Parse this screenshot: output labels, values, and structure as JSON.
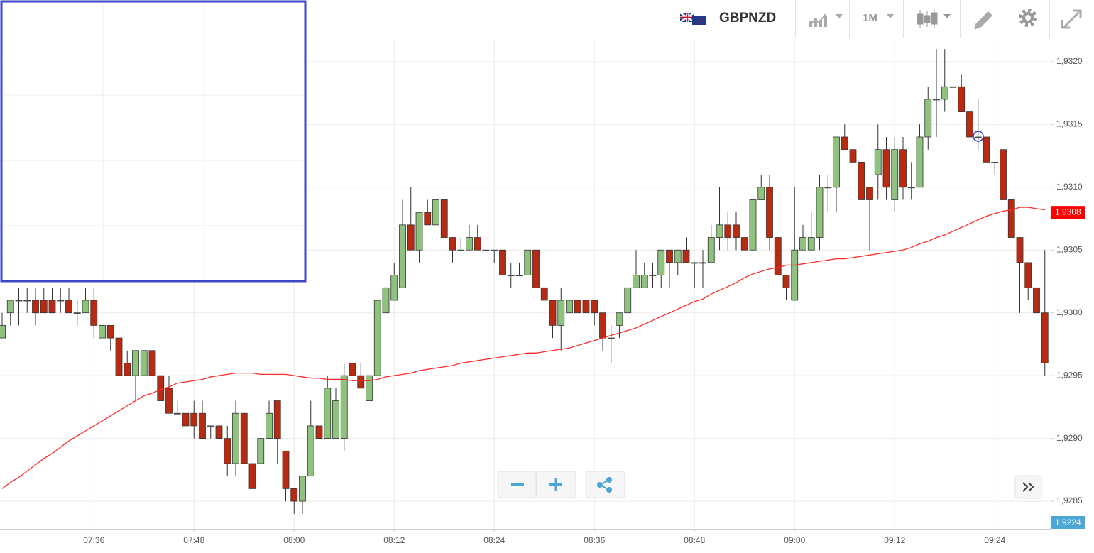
{
  "chart_data": {
    "type": "candlestick",
    "symbol": "GBPNZD",
    "interval": "1M",
    "categories": [
      null,
      null,
      null,
      null,
      null,
      null,
      null,
      null,
      null,
      null,
      null,
      "07:36",
      null,
      null,
      null,
      null,
      null,
      null,
      null,
      null,
      null,
      null,
      null,
      "07:48",
      null,
      null,
      null,
      null,
      null,
      null,
      null,
      null,
      null,
      null,
      null,
      "08:00",
      null,
      null,
      null,
      null,
      null,
      null,
      null,
      null,
      null,
      null,
      null,
      "08:12",
      null,
      null,
      null,
      null,
      null,
      null,
      null,
      null,
      null,
      null,
      null,
      "08:24",
      null,
      null,
      null,
      null,
      null,
      null,
      null,
      null,
      null,
      null,
      null,
      "08:36",
      null,
      null,
      null,
      null,
      null,
      null,
      null,
      null,
      null,
      null,
      null,
      "08:48",
      null,
      null,
      null,
      null,
      null,
      null,
      null,
      null,
      null,
      null,
      null,
      "09:00",
      null,
      null,
      null,
      null,
      null,
      null,
      null,
      null,
      null,
      null,
      null,
      "09:12",
      null,
      null,
      null,
      null,
      null,
      null,
      null,
      null,
      null,
      null,
      null,
      "09:24",
      null,
      null,
      null,
      null,
      null,
      null
    ],
    "open": [
      1.9298,
      1.93,
      1.9301,
      1.9301,
      1.9301,
      1.9301,
      1.9301,
      1.9301,
      1.9301,
      1.93,
      1.93,
      1.9301,
      1.9298,
      1.9299,
      1.9298,
      1.9296,
      1.9295,
      1.9295,
      1.9297,
      1.9295,
      1.9294,
      1.9292,
      1.9292,
      1.9292,
      1.9292,
      1.9291,
      1.9291,
      1.929,
      1.9288,
      1.9292,
      1.9288,
      1.9288,
      1.929,
      1.9293,
      1.9289,
      1.9286,
      1.9285,
      1.9287,
      1.9291,
      1.929,
      1.929,
      1.929,
      1.9296,
      1.9295,
      1.9293,
      1.9295,
      1.93,
      1.9301,
      1.9302,
      1.9307,
      1.9305,
      1.9308,
      1.9307,
      1.9309,
      1.9306,
      1.9305,
      1.9305,
      1.9306,
      1.9305,
      1.9305,
      1.9305,
      1.9303,
      1.9303,
      1.9303,
      1.9305,
      1.9302,
      1.9301,
      1.9299,
      1.93,
      1.9301,
      1.9301,
      1.9301,
      1.93,
      1.9298,
      1.9299,
      1.93,
      1.9302,
      1.9302,
      1.9303,
      1.9303,
      1.9305,
      1.9304,
      1.9305,
      1.9304,
      1.9304,
      1.9304,
      1.9306,
      1.9307,
      1.9307,
      1.9306,
      1.9305,
      1.9309,
      1.931,
      1.9306,
      1.9303,
      1.9301,
      1.9305,
      1.9305,
      1.9306,
      1.931,
      1.931,
      1.9314,
      1.9313,
      1.9312,
      1.931,
      1.9311,
      1.9313,
      1.9309,
      1.9313,
      1.931,
      1.931,
      1.9314,
      1.9317,
      1.9317,
      1.9318,
      1.9318,
      1.9316,
      1.9314,
      1.9314,
      1.9312,
      1.9313,
      1.9309,
      1.9306,
      1.9304,
      1.9302,
      1.93
    ],
    "high": [
      1.93,
      1.9301,
      1.9302,
      1.9302,
      1.9302,
      1.9302,
      1.9302,
      1.9302,
      1.9302,
      1.9301,
      1.9302,
      1.9302,
      1.9299,
      1.9299,
      1.9298,
      1.9297,
      1.9297,
      1.9297,
      1.9297,
      1.9295,
      1.9295,
      1.9293,
      1.9292,
      1.9293,
      1.9293,
      1.9291,
      1.9291,
      1.9291,
      1.9293,
      1.9292,
      1.9288,
      1.929,
      1.9293,
      1.9293,
      1.9289,
      1.9286,
      1.9287,
      1.9293,
      1.9296,
      1.9295,
      1.9294,
      1.9296,
      1.9296,
      1.9296,
      1.9295,
      1.9301,
      1.9302,
      1.9304,
      1.9309,
      1.931,
      1.9308,
      1.9309,
      1.9309,
      1.9309,
      1.9306,
      1.9306,
      1.9307,
      1.9307,
      1.9307,
      1.9305,
      1.9305,
      1.9304,
      1.9304,
      1.9305,
      1.9305,
      1.9302,
      1.9301,
      1.9302,
      1.9301,
      1.9301,
      1.9301,
      1.9301,
      1.93,
      1.9299,
      1.93,
      1.9302,
      1.9305,
      1.9304,
      1.9304,
      1.9305,
      1.9305,
      1.9305,
      1.9306,
      1.9304,
      1.9305,
      1.9307,
      1.931,
      1.9308,
      1.9308,
      1.9306,
      1.931,
      1.9311,
      1.9311,
      1.9306,
      1.9303,
      1.931,
      1.9307,
      1.9308,
      1.9311,
      1.9311,
      1.9314,
      1.9315,
      1.9317,
      1.9312,
      1.931,
      1.9315,
      1.9314,
      1.9314,
      1.9314,
      1.9312,
      1.9315,
      1.9318,
      1.9321,
      1.9321,
      1.9319,
      1.9319,
      1.9316,
      1.9317,
      1.9314,
      1.9312,
      1.9313,
      1.9309,
      1.9306,
      1.9304,
      1.9302,
      1.9305
    ],
    "low": [
      1.9298,
      1.9299,
      1.9299,
      1.93,
      1.9299,
      1.93,
      1.93,
      1.93,
      1.93,
      1.9299,
      1.93,
      1.9298,
      1.9298,
      1.9297,
      1.9295,
      1.9295,
      1.9293,
      1.9295,
      1.9295,
      1.9293,
      1.9292,
      1.9292,
      1.9291,
      1.929,
      1.929,
      1.929,
      1.929,
      1.9287,
      1.9287,
      1.9288,
      1.9286,
      1.9288,
      1.929,
      1.9288,
      1.9285,
      1.9284,
      1.9284,
      1.9287,
      1.929,
      1.929,
      1.929,
      1.9289,
      1.9295,
      1.9294,
      1.9293,
      1.9295,
      1.93,
      1.9301,
      1.9302,
      1.9305,
      1.9304,
      1.9307,
      1.9307,
      1.9306,
      1.9304,
      1.9305,
      1.9305,
      1.9305,
      1.9304,
      1.9304,
      1.9303,
      1.9302,
      1.9303,
      1.9303,
      1.9302,
      1.9301,
      1.9298,
      1.9297,
      1.93,
      1.93,
      1.93,
      1.9299,
      1.9297,
      1.9296,
      1.9298,
      1.93,
      1.9302,
      1.9302,
      1.9302,
      1.9302,
      1.9302,
      1.9303,
      1.9304,
      1.9302,
      1.9302,
      1.9304,
      1.9305,
      1.9305,
      1.9305,
      1.9305,
      1.9305,
      1.9309,
      1.9305,
      1.9303,
      1.9301,
      1.9301,
      1.9305,
      1.9305,
      1.9305,
      1.9308,
      1.9308,
      1.9313,
      1.9311,
      1.9309,
      1.9305,
      1.9309,
      1.9309,
      1.9308,
      1.9309,
      1.9309,
      1.931,
      1.9313,
      1.9314,
      1.9316,
      1.9317,
      1.9316,
      1.9314,
      1.9313,
      1.9312,
      1.9311,
      1.9309,
      1.9306,
      1.93,
      1.9301,
      1.93,
      1.9295
    ],
    "close": [
      1.9299,
      1.9301,
      1.9301,
      1.9301,
      1.93,
      1.93,
      1.93,
      1.9301,
      1.93,
      1.93,
      1.9301,
      1.9299,
      1.9299,
      1.9298,
      1.9295,
      1.9295,
      1.9297,
      1.9297,
      1.9295,
      1.9293,
      1.9292,
      1.9292,
      1.9291,
      1.9291,
      1.929,
      1.9291,
      1.929,
      1.9288,
      1.9292,
      1.9288,
      1.9286,
      1.929,
      1.9292,
      1.929,
      1.9286,
      1.9285,
      1.9287,
      1.9291,
      1.929,
      1.9294,
      1.9293,
      1.9295,
      1.9295,
      1.9294,
      1.9295,
      1.9301,
      1.9302,
      1.9303,
      1.9307,
      1.9305,
      1.9308,
      1.9307,
      1.9309,
      1.9306,
      1.9305,
      1.9305,
      1.9306,
      1.9305,
      1.9305,
      1.9305,
      1.9303,
      1.9303,
      1.9303,
      1.9305,
      1.9302,
      1.9301,
      1.9299,
      1.9301,
      1.9301,
      1.93,
      1.93,
      1.93,
      1.9298,
      1.9298,
      1.93,
      1.9302,
      1.9303,
      1.9303,
      1.9303,
      1.9305,
      1.9304,
      1.9305,
      1.9304,
      1.9304,
      1.9304,
      1.9306,
      1.9307,
      1.9306,
      1.9306,
      1.9305,
      1.9309,
      1.931,
      1.9306,
      1.9303,
      1.9302,
      1.9305,
      1.9306,
      1.9306,
      1.931,
      1.931,
      1.9314,
      1.9313,
      1.9312,
      1.9309,
      1.9309,
      1.9313,
      1.931,
      1.9313,
      1.931,
      1.931,
      1.9314,
      1.9317,
      1.9317,
      1.9318,
      1.9318,
      1.9316,
      1.9314,
      1.9314,
      1.9312,
      1.9312,
      1.9309,
      1.9306,
      1.9304,
      1.9302,
      1.93,
      1.9296
    ],
    "up_color": "#8fc27c",
    "down_color": "#b92a12",
    "moving_average": {
      "color": "#ff2b2b",
      "values": [
        1.9286,
        1.92865,
        1.92869,
        1.92874,
        1.92879,
        1.92884,
        1.92888,
        1.92893,
        1.92898,
        1.92902,
        1.92906,
        1.9291,
        1.92914,
        1.92918,
        1.92922,
        1.92926,
        1.9293,
        1.92934,
        1.92936,
        1.92939,
        1.92941,
        1.92944,
        1.92945,
        1.92946,
        1.92947,
        1.92949,
        1.9295,
        1.92951,
        1.92952,
        1.92952,
        1.92952,
        1.92951,
        1.92951,
        1.92951,
        1.92951,
        1.9295,
        1.92949,
        1.92948,
        1.92948,
        1.92947,
        1.92947,
        1.92947,
        1.92946,
        1.92946,
        1.92946,
        1.92947,
        1.92949,
        1.9295,
        1.92951,
        1.92952,
        1.92954,
        1.92955,
        1.92956,
        1.92957,
        1.92958,
        1.9296,
        1.92961,
        1.92962,
        1.92963,
        1.92964,
        1.92965,
        1.92966,
        1.92967,
        1.92968,
        1.92968,
        1.92969,
        1.9297,
        1.92971,
        1.92972,
        1.92974,
        1.92976,
        1.92978,
        1.9298,
        1.92982,
        1.92984,
        1.92986,
        1.92988,
        1.92991,
        1.92994,
        1.92997,
        1.93,
        1.93003,
        1.93006,
        1.93009,
        1.93011,
        1.93015,
        1.93018,
        1.93021,
        1.93024,
        1.93028,
        1.93031,
        1.93033,
        1.93035,
        1.93036,
        1.93038,
        1.93038,
        1.93039,
        1.9304,
        1.93041,
        1.93042,
        1.93043,
        1.93043,
        1.93044,
        1.93045,
        1.93046,
        1.93047,
        1.93048,
        1.93049,
        1.9305,
        1.93052,
        1.93055,
        1.93057,
        1.9306,
        1.93062,
        1.93065,
        1.93068,
        1.93071,
        1.93074,
        1.93077,
        1.93079,
        1.93081,
        1.93082,
        1.93084,
        1.93084,
        1.93083,
        1.93082
      ]
    },
    "ma_label": {
      "value": 1.9308,
      "label": "1,9308"
    },
    "cursor_label": "1,9224",
    "ylim": [
      1.92828,
      1.93218
    ],
    "yticks": [
      {
        "value": 1.9285,
        "label": "1,9285"
      },
      {
        "value": 1.929,
        "label": "1,9290"
      },
      {
        "value": 1.9295,
        "label": "1,9295"
      },
      {
        "value": 1.93,
        "label": "1,9300"
      },
      {
        "value": 1.9305,
        "label": "1,9305"
      },
      {
        "value": 1.931,
        "label": "1,9310"
      },
      {
        "value": 1.9315,
        "label": "1,9315"
      },
      {
        "value": 1.932,
        "label": "1,9320"
      }
    ],
    "grid": true
  }
}
